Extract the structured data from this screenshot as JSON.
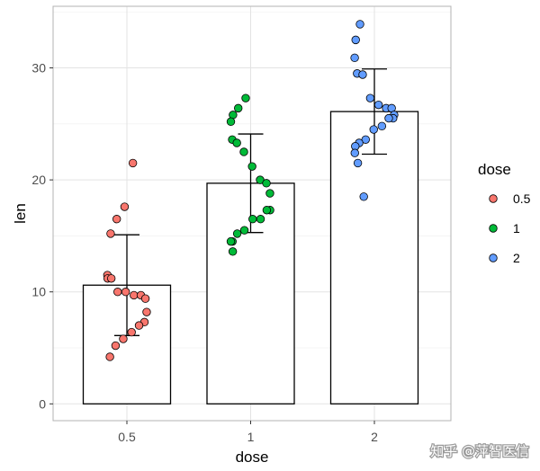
{
  "chart_data": {
    "type": "bar",
    "title": "",
    "xlabel": "dose",
    "ylabel": "len",
    "categories": [
      "0.5",
      "1",
      "2"
    ],
    "values": [
      10.6,
      19.7,
      26.1
    ],
    "error_bars": [
      {
        "low": 6.1,
        "high": 15.1
      },
      {
        "low": 15.3,
        "high": 24.1
      },
      {
        "low": 22.3,
        "high": 29.9
      }
    ],
    "ylim": [
      -1.5,
      35.5
    ],
    "yticks": [
      0,
      10,
      20,
      30
    ],
    "grid": true,
    "legend": {
      "title": "dose",
      "position": "right",
      "entries": [
        {
          "label": "0.5",
          "color": "#F8766D"
        },
        {
          "label": "1",
          "color": "#00BA38"
        },
        {
          "label": "2",
          "color": "#619CFF"
        }
      ]
    },
    "points": [
      {
        "dose": "0.5",
        "color": "#F8766D",
        "values": [
          [
            0.5,
            21.5
          ],
          [
            0.5,
            17.6
          ],
          [
            0.5,
            16.5
          ],
          [
            0.5,
            15.2
          ],
          [
            0.5,
            11.5
          ],
          [
            0.5,
            11.2
          ],
          [
            0.5,
            11.2
          ],
          [
            0.5,
            10.0
          ],
          [
            0.5,
            10.0
          ],
          [
            0.5,
            9.7
          ],
          [
            0.5,
            9.7
          ],
          [
            0.5,
            9.4
          ],
          [
            0.5,
            8.2
          ],
          [
            0.5,
            7.3
          ],
          [
            0.5,
            7.0
          ],
          [
            0.5,
            6.4
          ],
          [
            0.5,
            5.8
          ],
          [
            0.5,
            5.2
          ],
          [
            0.5,
            4.2
          ]
        ]
      },
      {
        "dose": "1",
        "color": "#00BA38",
        "values": [
          [
            1,
            27.3
          ],
          [
            1,
            26.4
          ],
          [
            1,
            25.8
          ],
          [
            1,
            25.2
          ],
          [
            1,
            23.6
          ],
          [
            1,
            23.3
          ],
          [
            1,
            22.5
          ],
          [
            1,
            21.2
          ],
          [
            1,
            20.0
          ],
          [
            1,
            19.7
          ],
          [
            1,
            18.8
          ],
          [
            1,
            17.3
          ],
          [
            1,
            17.3
          ],
          [
            1,
            16.5
          ],
          [
            1,
            16.5
          ],
          [
            1,
            15.5
          ],
          [
            1,
            15.2
          ],
          [
            1,
            14.5
          ],
          [
            1,
            14.5
          ],
          [
            1,
            13.6
          ]
        ]
      },
      {
        "dose": "2",
        "color": "#619CFF",
        "values": [
          [
            2,
            33.9
          ],
          [
            2,
            32.5
          ],
          [
            2,
            30.9
          ],
          [
            2,
            29.5
          ],
          [
            2,
            29.4
          ],
          [
            2,
            27.3
          ],
          [
            2,
            26.7
          ],
          [
            2,
            26.4
          ],
          [
            2,
            26.4
          ],
          [
            2,
            25.8
          ],
          [
            2,
            25.5
          ],
          [
            2,
            25.5
          ],
          [
            2,
            24.8
          ],
          [
            2,
            24.5
          ],
          [
            2,
            23.6
          ],
          [
            2,
            23.3
          ],
          [
            2,
            23.0
          ],
          [
            2,
            22.4
          ],
          [
            2,
            21.5
          ],
          [
            2,
            18.5
          ]
        ]
      }
    ]
  },
  "watermark": "知乎 @萍智医信"
}
